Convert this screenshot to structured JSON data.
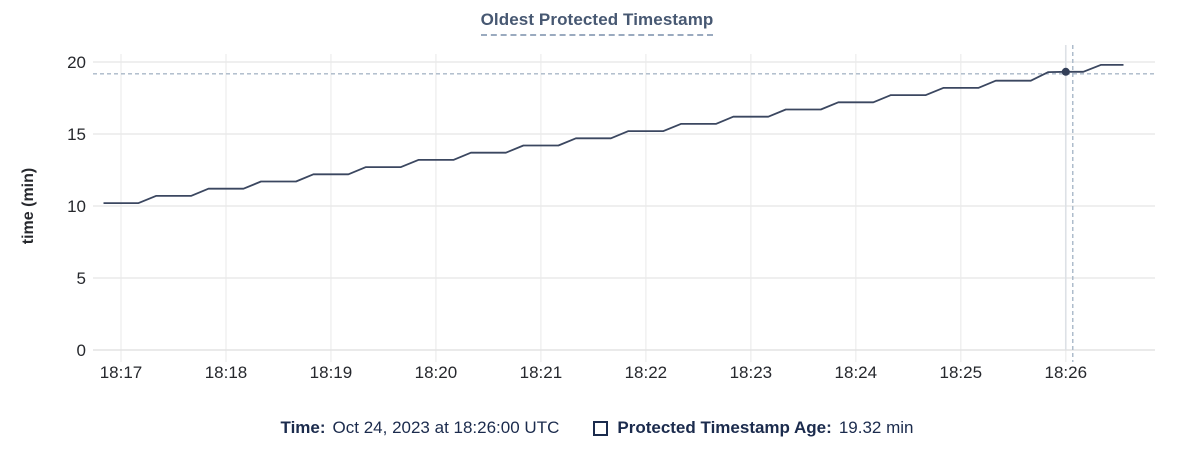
{
  "header": {
    "title": "Oldest Protected Timestamp"
  },
  "footer": {
    "time_label": "Time:",
    "time_value": "Oct 24, 2023 at 18:26:00 UTC",
    "series_label": "Protected Timestamp Age:",
    "series_value": "19.32 min"
  },
  "colors": {
    "line": "#3b4760",
    "marker": "#333f58",
    "title": "#475872",
    "axis_text": "#26282d",
    "legend_text": "#1b2b4d",
    "grid_horizontal": "#eaeaea",
    "grid_vertical": "#efefef",
    "axis_baseline": "#e3e3e3",
    "crosshair_dashed": "#a9b8c8",
    "crosshair_solid": "#dde1e6",
    "background": "#ffffff"
  },
  "chart_data": {
    "type": "line",
    "title": "Oldest Protected Timestamp",
    "xlabel": "",
    "ylabel": "time (min)",
    "ylim": [
      0,
      20
    ],
    "y_ticks": [
      0,
      5,
      10,
      15,
      20
    ],
    "x_ticks": [
      {
        "label": "18:17",
        "t": "18:17:00"
      },
      {
        "label": "18:18",
        "t": "18:18:00"
      },
      {
        "label": "18:19",
        "t": "18:19:00"
      },
      {
        "label": "18:20",
        "t": "18:20:00"
      },
      {
        "label": "18:21",
        "t": "18:21:00"
      },
      {
        "label": "18:22",
        "t": "18:22:00"
      },
      {
        "label": "18:23",
        "t": "18:23:00"
      },
      {
        "label": "18:24",
        "t": "18:24:00"
      },
      {
        "label": "18:25",
        "t": "18:25:00"
      },
      {
        "label": "18:26",
        "t": "18:26:00"
      }
    ],
    "x_range": [
      "18:16:44",
      "18:26:51"
    ],
    "grid": true,
    "legend_position": "bottom",
    "series": [
      {
        "name": "Protected Timestamp Age",
        "unit": "min",
        "points": [
          [
            "18:16:50",
            10.2
          ],
          [
            "18:17:00",
            10.2
          ],
          [
            "18:17:10",
            10.2
          ],
          [
            "18:17:20",
            10.7
          ],
          [
            "18:17:30",
            10.7
          ],
          [
            "18:17:40",
            10.7
          ],
          [
            "18:17:50",
            11.2
          ],
          [
            "18:18:00",
            11.2
          ],
          [
            "18:18:10",
            11.2
          ],
          [
            "18:18:20",
            11.7
          ],
          [
            "18:18:30",
            11.7
          ],
          [
            "18:18:40",
            11.7
          ],
          [
            "18:18:50",
            12.2
          ],
          [
            "18:19:00",
            12.2
          ],
          [
            "18:19:10",
            12.2
          ],
          [
            "18:19:20",
            12.7
          ],
          [
            "18:19:30",
            12.7
          ],
          [
            "18:19:40",
            12.7
          ],
          [
            "18:19:50",
            13.2
          ],
          [
            "18:20:00",
            13.2
          ],
          [
            "18:20:10",
            13.2
          ],
          [
            "18:20:20",
            13.7
          ],
          [
            "18:20:30",
            13.7
          ],
          [
            "18:20:40",
            13.7
          ],
          [
            "18:20:50",
            14.2
          ],
          [
            "18:21:00",
            14.2
          ],
          [
            "18:21:10",
            14.2
          ],
          [
            "18:21:20",
            14.7
          ],
          [
            "18:21:30",
            14.7
          ],
          [
            "18:21:40",
            14.7
          ],
          [
            "18:21:50",
            15.2
          ],
          [
            "18:22:00",
            15.2
          ],
          [
            "18:22:10",
            15.2
          ],
          [
            "18:22:20",
            15.7
          ],
          [
            "18:22:30",
            15.7
          ],
          [
            "18:22:40",
            15.7
          ],
          [
            "18:22:50",
            16.2
          ],
          [
            "18:23:00",
            16.2
          ],
          [
            "18:23:10",
            16.2
          ],
          [
            "18:23:20",
            16.7
          ],
          [
            "18:23:30",
            16.7
          ],
          [
            "18:23:40",
            16.7
          ],
          [
            "18:23:50",
            17.2
          ],
          [
            "18:24:00",
            17.2
          ],
          [
            "18:24:10",
            17.2
          ],
          [
            "18:24:20",
            17.7
          ],
          [
            "18:24:30",
            17.7
          ],
          [
            "18:24:40",
            17.7
          ],
          [
            "18:24:50",
            18.2
          ],
          [
            "18:25:00",
            18.2
          ],
          [
            "18:25:10",
            18.2
          ],
          [
            "18:25:20",
            18.7
          ],
          [
            "18:25:30",
            18.7
          ],
          [
            "18:25:40",
            18.7
          ],
          [
            "18:25:50",
            19.3
          ],
          [
            "18:26:00",
            19.32
          ],
          [
            "18:26:10",
            19.32
          ],
          [
            "18:26:20",
            19.8
          ],
          [
            "18:26:33",
            19.8
          ]
        ]
      }
    ],
    "highlight": {
      "time": "18:26:00",
      "value": 19.32,
      "dashed_vertical_time": "18:26:04"
    }
  }
}
